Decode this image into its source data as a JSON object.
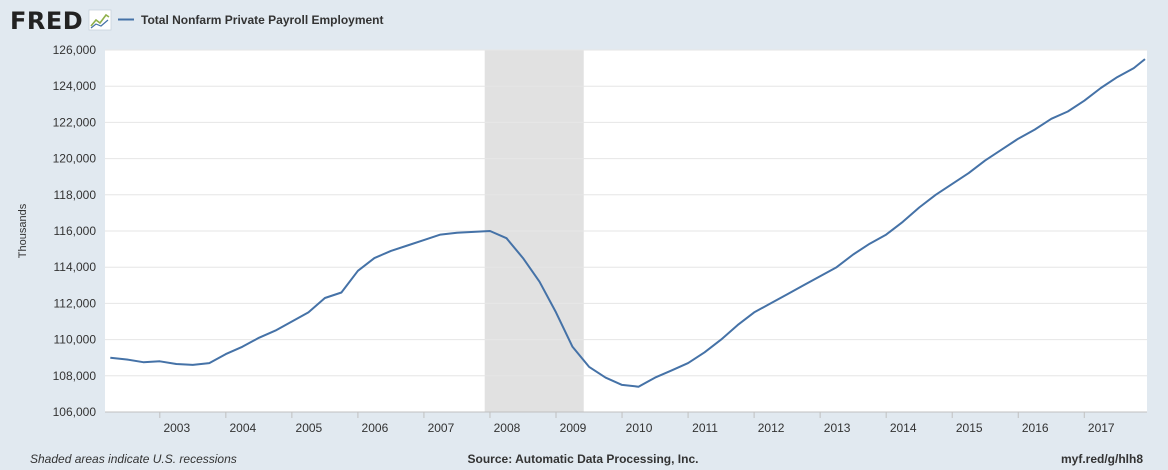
{
  "header": {
    "logo_text": "FRED",
    "series_name": "Total Nonfarm Private Payroll Employment"
  },
  "footer": {
    "recession_note": "Shaded areas indicate U.S. recessions",
    "source": "Source: Automatic Data Processing, Inc.",
    "link": "myf.red/g/hlh8"
  },
  "colors": {
    "page_background": "#e1e9f0",
    "plot_background": "#ffffff",
    "series_line": "#4572a7",
    "recession_band": "#e1e1e1",
    "gridline": "#e6e6e6"
  },
  "icons": {
    "logo_graph": "line-chart-icon"
  },
  "chart_data": {
    "type": "line",
    "title": "",
    "xlabel": "",
    "ylabel": "Thousands",
    "grid": true,
    "legend_position": "top-left",
    "x_unit": "year",
    "xlim": [
      2002.17,
      2017.95
    ],
    "ylim": [
      106000,
      126000
    ],
    "y_ticks": [
      106000,
      108000,
      110000,
      112000,
      114000,
      116000,
      118000,
      120000,
      122000,
      124000,
      126000
    ],
    "y_tick_labels": [
      "106,000",
      "108,000",
      "110,000",
      "112,000",
      "114,000",
      "116,000",
      "118,000",
      "120,000",
      "122,000",
      "124,000",
      "126,000"
    ],
    "x_ticks": [
      2003,
      2004,
      2005,
      2006,
      2007,
      2008,
      2009,
      2010,
      2011,
      2012,
      2013,
      2014,
      2015,
      2016,
      2017
    ],
    "x_tick_labels": [
      "2003",
      "2004",
      "2005",
      "2006",
      "2007",
      "2008",
      "2009",
      "2010",
      "2011",
      "2012",
      "2013",
      "2014",
      "2015",
      "2016",
      "2017"
    ],
    "recessions": [
      [
        2007.92,
        2009.42
      ]
    ],
    "series": [
      {
        "name": "Total Nonfarm Private Payroll Employment",
        "x": [
          2002.25,
          2002.5,
          2002.75,
          2003.0,
          2003.25,
          2003.5,
          2003.75,
          2004.0,
          2004.25,
          2004.5,
          2004.75,
          2005.0,
          2005.25,
          2005.5,
          2005.75,
          2006.0,
          2006.25,
          2006.5,
          2006.75,
          2007.0,
          2007.25,
          2007.5,
          2007.75,
          2008.0,
          2008.25,
          2008.5,
          2008.75,
          2009.0,
          2009.25,
          2009.5,
          2009.75,
          2010.0,
          2010.25,
          2010.5,
          2010.75,
          2011.0,
          2011.25,
          2011.5,
          2011.75,
          2012.0,
          2012.25,
          2012.5,
          2012.75,
          2013.0,
          2013.25,
          2013.5,
          2013.75,
          2014.0,
          2014.25,
          2014.5,
          2014.75,
          2015.0,
          2015.25,
          2015.5,
          2015.75,
          2016.0,
          2016.25,
          2016.5,
          2016.75,
          2017.0,
          2017.25,
          2017.5,
          2017.75,
          2017.92
        ],
        "values": [
          109000,
          108900,
          108750,
          108800,
          108650,
          108600,
          108700,
          109200,
          109600,
          110100,
          110500,
          111000,
          111500,
          112300,
          112600,
          113800,
          114500,
          114900,
          115200,
          115500,
          115800,
          115900,
          115950,
          116000,
          115600,
          114500,
          113200,
          111500,
          109600,
          108500,
          107900,
          107500,
          107400,
          107900,
          108300,
          108700,
          109300,
          110000,
          110800,
          111500,
          112000,
          112500,
          113000,
          113500,
          114000,
          114700,
          115300,
          115800,
          116500,
          117300,
          118000,
          118600,
          119200,
          119900,
          120500,
          121100,
          121600,
          122200,
          122600,
          123200,
          123900,
          124500,
          125000,
          125500
        ]
      }
    ]
  }
}
